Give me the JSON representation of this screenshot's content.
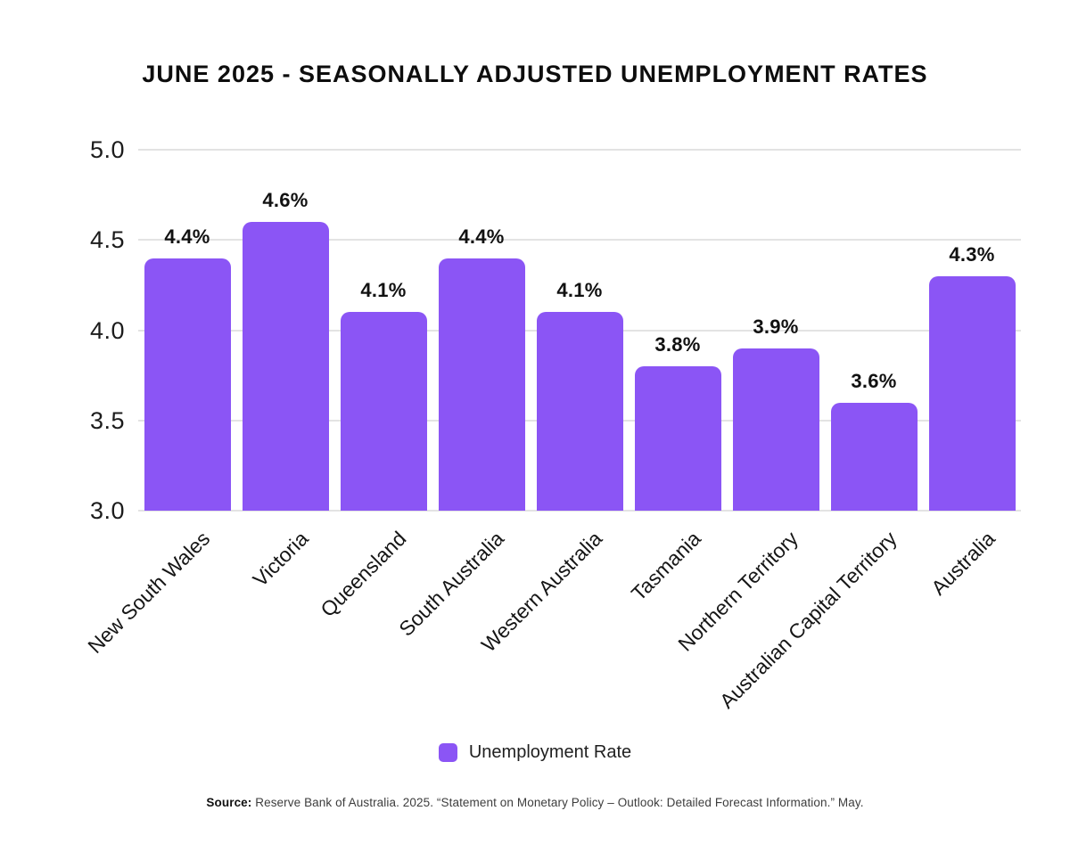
{
  "header": {
    "title": "JUNE 2025 - SEASONALLY ADJUSTED UNEMPLOYMENT RATES"
  },
  "chart_data": {
    "type": "bar",
    "title": "JUNE 2025 - SEASONALLY ADJUSTED UNEMPLOYMENT RATES",
    "categories": [
      "New South Wales",
      "Victoria",
      "Queensland",
      "South Australia",
      "Western Australia",
      "Tasmania",
      "Northern Territory",
      "Australian Capital Territory",
      "Australia"
    ],
    "values": [
      4.4,
      4.6,
      4.1,
      4.4,
      4.1,
      3.8,
      3.9,
      3.6,
      4.3
    ],
    "value_labels": [
      "4.4%",
      "4.6%",
      "4.1%",
      "4.4%",
      "4.1%",
      "3.8%",
      "3.9%",
      "3.6%",
      "4.3%"
    ],
    "series_name": "Unemployment Rate",
    "xlabel": "",
    "ylabel": "",
    "ylim": [
      3.0,
      5.0
    ],
    "yticks": [
      5.0,
      4.5,
      4.0,
      3.5,
      3.0
    ],
    "ytick_labels": [
      "5.0",
      "4.5",
      "4.0",
      "3.5",
      "3.0"
    ],
    "grid": "horizontal",
    "legend_position": "bottom",
    "bar_color": "#8B55F5",
    "gridline_color": "#e3e3e3"
  },
  "legend": {
    "label": "Unemployment Rate",
    "swatch_color": "#8B55F5"
  },
  "footer": {
    "source_prefix": "Source:",
    "source_text": "Reserve Bank of Australia. 2025. “Statement on Monetary Policy – Outlook: Detailed Forecast Information.” May."
  }
}
